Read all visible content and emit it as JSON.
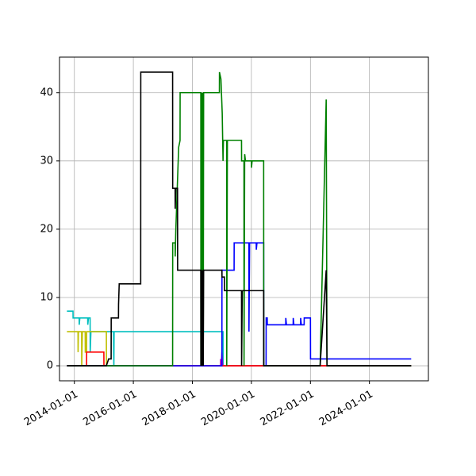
{
  "chart_data": {
    "type": "line",
    "title": "",
    "xlabel": "",
    "ylabel": "",
    "xlim": [
      "2013-07-01",
      "2025-12-31"
    ],
    "ylim": [
      -2.2,
      45.2
    ],
    "grid": true,
    "legend": "none",
    "x_ticks": [
      "2014-01-01",
      "2016-01-01",
      "2018-01-01",
      "2020-01-01",
      "2022-01-01",
      "2024-01-01"
    ],
    "y_ticks": [
      0,
      10,
      20,
      30,
      40
    ],
    "series": [
      {
        "color": "#00bfbf",
        "points": [
          [
            "2013-10-01",
            8
          ],
          [
            "2013-12-15",
            8
          ],
          [
            "2013-12-16",
            7
          ],
          [
            "2014-03-01",
            7
          ],
          [
            "2014-03-02",
            6
          ],
          [
            "2014-03-10",
            7
          ],
          [
            "2014-06-15",
            7
          ],
          [
            "2014-06-16",
            6
          ],
          [
            "2014-06-25",
            7
          ],
          [
            "2014-07-15",
            7
          ],
          [
            "2014-07-16",
            2
          ],
          [
            "2014-07-25",
            5
          ],
          [
            "2015-05-01",
            5
          ],
          [
            "2015-05-02",
            2
          ],
          [
            "2015-05-05",
            0
          ],
          [
            "2015-05-08",
            5
          ],
          [
            "2019-01-15",
            5
          ],
          [
            "2019-01-16",
            0
          ],
          [
            "2025-06-01",
            0
          ]
        ]
      },
      {
        "color": "#bfbf00",
        "points": [
          [
            "2013-10-01",
            5
          ],
          [
            "2014-02-15",
            5
          ],
          [
            "2014-02-16",
            2
          ],
          [
            "2014-02-20",
            5
          ],
          [
            "2014-04-01",
            5
          ],
          [
            "2014-04-02",
            0
          ],
          [
            "2014-04-10",
            5
          ],
          [
            "2014-05-15",
            5
          ],
          [
            "2014-05-16",
            2
          ],
          [
            "2014-06-01",
            2
          ],
          [
            "2014-06-02",
            5
          ],
          [
            "2015-02-01",
            5
          ],
          [
            "2015-02-02",
            0
          ],
          [
            "2025-06-01",
            0
          ]
        ]
      },
      {
        "color": "#bf00bf",
        "points": [
          [
            "2013-10-01",
            0
          ],
          [
            "2015-02-01",
            0
          ],
          [
            "2018-12-15",
            0
          ],
          [
            "2018-12-16",
            1
          ],
          [
            "2018-12-25",
            0
          ],
          [
            "2019-01-01",
            2
          ],
          [
            "2019-01-10",
            0
          ],
          [
            "2025-06-01",
            0
          ]
        ]
      },
      {
        "color": "#ff0000",
        "points": [
          [
            "2013-10-01",
            0
          ],
          [
            "2014-06-01",
            0
          ],
          [
            "2014-06-02",
            2
          ],
          [
            "2015-01-01",
            2
          ],
          [
            "2015-01-02",
            0
          ],
          [
            "2025-06-01",
            0
          ]
        ]
      },
      {
        "color": "#0000ff",
        "points": [
          [
            "2013-10-01",
            0
          ],
          [
            "2019-01-01",
            0
          ],
          [
            "2019-01-02",
            14
          ],
          [
            "2019-06-01",
            14
          ],
          [
            "2019-06-02",
            18
          ],
          [
            "2019-12-01",
            18
          ],
          [
            "2019-12-02",
            5
          ],
          [
            "2019-12-10",
            18
          ],
          [
            "2020-03-01",
            18
          ],
          [
            "2020-03-02",
            17
          ],
          [
            "2020-03-10",
            18
          ],
          [
            "2020-06-01",
            18
          ],
          [
            "2020-06-02",
            0
          ],
          [
            "2020-07-01",
            0
          ],
          [
            "2020-07-02",
            7
          ],
          [
            "2020-07-15",
            7
          ],
          [
            "2020-07-16",
            6
          ],
          [
            "2021-03-01",
            6
          ],
          [
            "2021-03-02",
            7
          ],
          [
            "2021-03-10",
            6
          ],
          [
            "2021-06-01",
            6
          ],
          [
            "2021-06-02",
            7
          ],
          [
            "2021-06-10",
            6
          ],
          [
            "2021-09-01",
            6
          ],
          [
            "2021-09-02",
            7
          ],
          [
            "2021-09-10",
            6
          ],
          [
            "2021-10-15",
            6
          ],
          [
            "2021-10-16",
            7
          ],
          [
            "2022-01-01",
            7
          ],
          [
            "2022-01-02",
            1
          ],
          [
            "2025-06-01",
            1
          ]
        ]
      },
      {
        "color": "#008000",
        "points": [
          [
            "2013-10-01",
            0
          ],
          [
            "2017-05-01",
            0
          ],
          [
            "2017-05-02",
            18
          ],
          [
            "2017-06-01",
            18
          ],
          [
            "2017-06-02",
            16
          ],
          [
            "2017-06-10",
            20
          ],
          [
            "2017-07-15",
            32
          ],
          [
            "2017-08-01",
            33
          ],
          [
            "2017-08-02",
            40
          ],
          [
            "2018-04-15",
            40
          ],
          [
            "2018-04-16",
            0
          ],
          [
            "2018-04-20",
            40
          ],
          [
            "2018-05-01",
            0
          ],
          [
            "2018-05-05",
            40
          ],
          [
            "2018-05-15",
            0
          ],
          [
            "2018-05-20",
            40
          ],
          [
            "2018-12-01",
            40
          ],
          [
            "2018-12-02",
            43
          ],
          [
            "2018-12-20",
            42
          ],
          [
            "2019-01-05",
            37
          ],
          [
            "2019-01-15",
            30
          ],
          [
            "2019-01-20",
            33
          ],
          [
            "2019-03-01",
            33
          ],
          [
            "2019-03-02",
            0
          ],
          [
            "2019-03-10",
            33
          ],
          [
            "2019-09-01",
            33
          ],
          [
            "2019-09-02",
            30
          ],
          [
            "2019-10-01",
            30
          ],
          [
            "2019-10-02",
            0
          ],
          [
            "2019-10-10",
            31
          ],
          [
            "2019-10-20",
            30
          ],
          [
            "2020-01-01",
            30
          ],
          [
            "2020-01-02",
            29
          ],
          [
            "2020-01-10",
            30
          ],
          [
            "2020-06-01",
            30
          ],
          [
            "2020-06-02",
            0
          ],
          [
            "2022-05-01",
            0
          ],
          [
            "2022-07-15",
            39
          ],
          [
            "2022-07-25",
            0
          ],
          [
            "2025-06-01",
            0
          ]
        ]
      },
      {
        "color": "#000000",
        "points": [
          [
            "2013-10-01",
            0
          ],
          [
            "2015-02-01",
            0
          ],
          [
            "2015-03-01",
            1
          ],
          [
            "2015-04-01",
            1
          ],
          [
            "2015-04-02",
            7
          ],
          [
            "2015-07-01",
            7
          ],
          [
            "2015-07-02",
            9
          ],
          [
            "2015-07-10",
            12
          ],
          [
            "2016-04-01",
            12
          ],
          [
            "2016-04-02",
            43
          ],
          [
            "2017-05-01",
            43
          ],
          [
            "2017-05-02",
            26
          ],
          [
            "2017-06-01",
            26
          ],
          [
            "2017-06-02",
            23
          ],
          [
            "2017-06-10",
            26
          ],
          [
            "2017-07-01",
            26
          ],
          [
            "2017-07-02",
            14
          ],
          [
            "2018-04-15",
            14
          ],
          [
            "2018-04-16",
            0
          ],
          [
            "2018-04-20",
            14
          ],
          [
            "2018-05-01",
            0
          ],
          [
            "2018-05-05",
            14
          ],
          [
            "2018-05-15",
            0
          ],
          [
            "2018-05-20",
            14
          ],
          [
            "2019-01-01",
            14
          ],
          [
            "2019-01-02",
            13
          ],
          [
            "2019-02-01",
            13
          ],
          [
            "2019-02-02",
            11
          ],
          [
            "2019-09-01",
            11
          ],
          [
            "2019-09-02",
            0
          ],
          [
            "2019-09-10",
            11
          ],
          [
            "2020-06-01",
            11
          ],
          [
            "2020-06-02",
            0
          ],
          [
            "2022-05-01",
            0
          ],
          [
            "2022-07-15",
            14
          ],
          [
            "2022-07-25",
            0
          ],
          [
            "2025-06-01",
            0
          ]
        ]
      }
    ]
  }
}
